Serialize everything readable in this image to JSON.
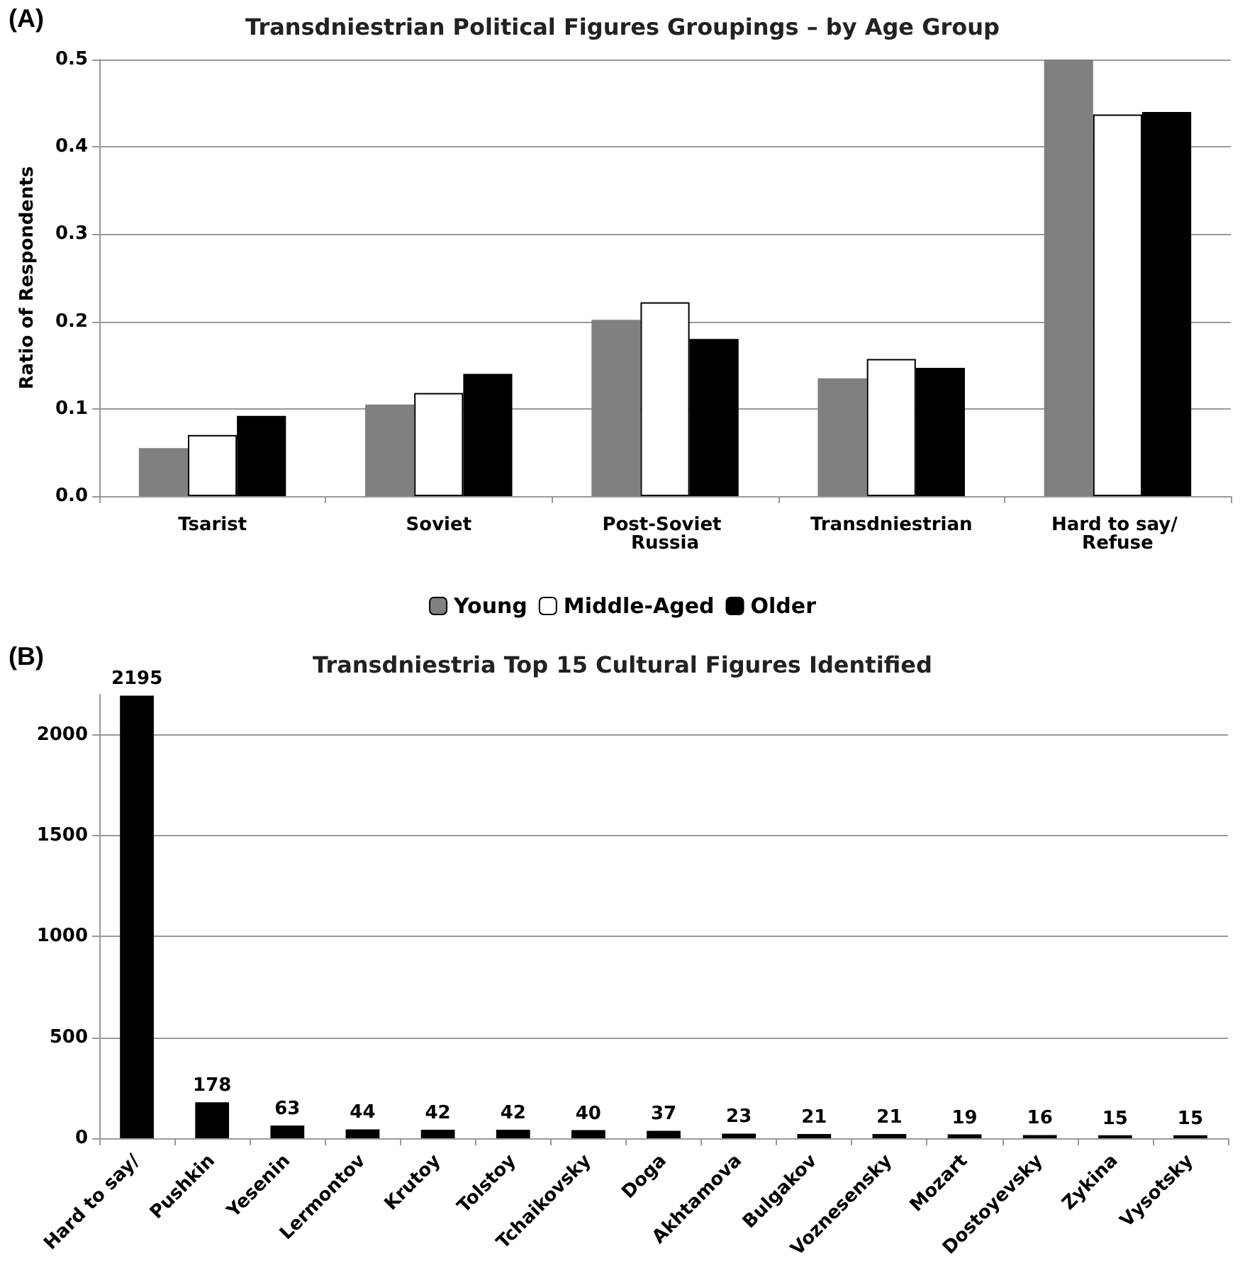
{
  "chart_data": [
    {
      "type": "bar",
      "title": "Transdniestrian Political Figures Groupings – by Age Group",
      "ylabel": "Ratio of Respondents",
      "annotations": [
        "(A)"
      ],
      "categories": [
        "Tsarist",
        "Soviet",
        "Post-Soviet Russia",
        "Transdniestrian",
        "Hard to say/ Refuse"
      ],
      "series": [
        {
          "name": "Young",
          "color": "#808080",
          "values": [
            0.055,
            0.105,
            0.202,
            0.135,
            0.5
          ]
        },
        {
          "name": "Middle-Aged",
          "color": "#ffffff",
          "values": [
            0.07,
            0.118,
            0.222,
            0.157,
            0.437
          ]
        },
        {
          "name": "Older",
          "color": "#000000",
          "values": [
            0.092,
            0.14,
            0.18,
            0.147,
            0.44
          ]
        }
      ],
      "ylim": [
        0,
        0.5
      ],
      "yticks": [
        {
          "value": 0,
          "label": "0.0"
        },
        0.1,
        0.2,
        0.3,
        0.4,
        0.5
      ],
      "grid": "y",
      "legend": "bottom"
    },
    {
      "type": "bar",
      "title": "Transdniestria Top 15 Cultural Figures Identified",
      "annotations": [
        "(B)"
      ],
      "categories": [
        "Hard to say/",
        "Pushkin",
        "Yesenin",
        "Lermontov",
        "Krutoy",
        "Tolstoy",
        "Tchaikovsky",
        "Doga",
        "Akhtamova",
        "Bulgakov",
        "Voznesensky",
        "Mozart",
        "Dostoyevsky",
        "Zykina",
        "Vysotsky"
      ],
      "values": [
        2195,
        178,
        63,
        44,
        42,
        42,
        40,
        37,
        23,
        21,
        21,
        19,
        16,
        15,
        15
      ],
      "color": "#000000",
      "data_labels": true,
      "ylim": [
        0,
        2200
      ],
      "yticks": [
        0,
        500,
        1000,
        1500,
        2000
      ],
      "grid": "y",
      "legend": false
    }
  ]
}
